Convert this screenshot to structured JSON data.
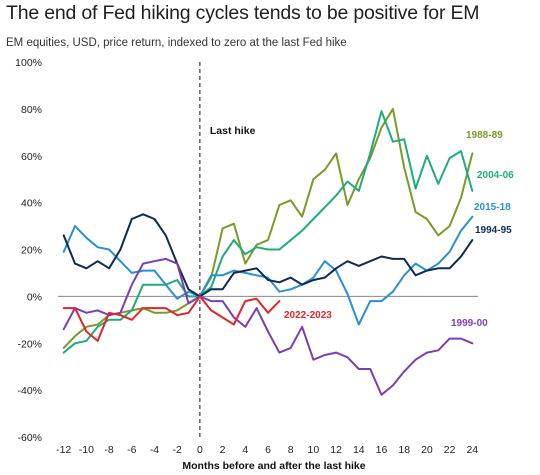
{
  "title": "The end of Fed hiking cycles tends to be positive for EM",
  "subtitle": "EM equities, USD, price return, indexed to zero at the last Fed hike",
  "chart_data": {
    "type": "line",
    "title": "The end of Fed hiking cycles tends to be positive for EM",
    "subtitle": "EM equities, USD, price return, indexed to zero at the last Fed hike",
    "xlabel": "Months before and after the last hike",
    "ylabel": "",
    "x": [
      -12,
      -11,
      -10,
      -9,
      -8,
      -7,
      -6,
      -5,
      -4,
      -3,
      -2,
      -1,
      0,
      1,
      2,
      3,
      4,
      5,
      6,
      7,
      8,
      9,
      10,
      11,
      12,
      13,
      14,
      15,
      16,
      17,
      18,
      19,
      20,
      21,
      22,
      23,
      24
    ],
    "xlim": [
      -12.5,
      24.5
    ],
    "ylim": [
      -60,
      100
    ],
    "xticks": [
      -12,
      -10,
      -8,
      -6,
      -4,
      -2,
      0,
      2,
      4,
      6,
      8,
      10,
      12,
      14,
      16,
      18,
      20,
      22,
      24
    ],
    "xtick_labels": [
      "-12",
      "-10",
      "-8",
      "-6",
      "-4",
      "-2",
      "0",
      "2",
      "4",
      "6",
      "8",
      "10",
      "12",
      "14",
      "16",
      "18",
      "20",
      "22",
      "24"
    ],
    "yticks": [
      -60,
      -40,
      -20,
      0,
      20,
      40,
      60,
      80,
      100
    ],
    "ytick_labels": [
      "-60%",
      "-40%",
      "-20%",
      "0%",
      "20%",
      "40%",
      "60%",
      "80%",
      "100%"
    ],
    "grid": false,
    "annotation": {
      "text": "Last hike",
      "x": 0
    },
    "series": [
      {
        "name": "1988-89",
        "color": "#7a9a2a",
        "values": [
          -22,
          -17,
          -13,
          -12,
          -8,
          -7,
          -6,
          -5,
          -7,
          -7,
          -6,
          -3,
          0,
          8,
          29,
          31,
          14,
          22,
          24,
          39,
          41,
          34,
          50,
          54,
          61,
          39,
          50,
          59,
          72,
          80,
          55,
          36,
          33,
          26,
          30,
          42,
          61
        ]
      },
      {
        "name": "2004-06",
        "color": "#1fab7c",
        "values": [
          -24,
          -20,
          -19,
          -13,
          -10,
          -10,
          -6,
          5,
          5,
          5,
          7,
          0,
          0,
          4,
          17,
          24,
          18,
          21,
          20,
          20,
          24,
          28,
          33,
          38,
          43,
          49,
          45,
          61,
          79,
          66,
          67,
          46,
          60,
          48,
          59,
          62,
          45
        ]
      },
      {
        "name": "2015-18",
        "color": "#2b8fd4",
        "values": [
          19,
          30,
          25,
          21,
          20,
          15,
          10,
          11,
          11,
          5,
          -1,
          2,
          0,
          9,
          9,
          11,
          10,
          9,
          8,
          2,
          3,
          5,
          8,
          15,
          11,
          1,
          -12,
          -2,
          -2,
          2,
          9,
          14,
          11,
          14,
          19,
          28,
          34
        ]
      },
      {
        "name": "1994-95",
        "color": "#0f2b55",
        "values": [
          26,
          14,
          12,
          15,
          12,
          20,
          33,
          35,
          33,
          26,
          14,
          3,
          0,
          3,
          3,
          10,
          11,
          12,
          7,
          6,
          8,
          5,
          7,
          8,
          12,
          15,
          13,
          15,
          17,
          16,
          16,
          9,
          11,
          12,
          12,
          17,
          24
        ]
      },
      {
        "name": "1999-00",
        "color": "#7a3fb2",
        "values": [
          -14,
          -5,
          -7,
          -6,
          -8,
          -7,
          5,
          14,
          15,
          16,
          14,
          -3,
          0,
          -2,
          -2,
          -9,
          -13,
          -5,
          -15,
          -24,
          -22,
          -13,
          -27,
          -25,
          -24,
          -26,
          -31,
          -31,
          -42,
          -38,
          -32,
          -27,
          -24,
          -23,
          -18,
          -18,
          -20
        ]
      },
      {
        "name": "2022-2023",
        "color": "#e0262a",
        "x": [
          -12,
          -11,
          -10,
          -9,
          -8,
          -7,
          -6,
          -5,
          -4,
          -3,
          -2,
          -1,
          0,
          1,
          2,
          3,
          4,
          5,
          6,
          7
        ],
        "values": [
          -5,
          -5,
          -15,
          -19,
          -7,
          -8,
          -10,
          -5,
          -5,
          -5,
          -8,
          -7,
          0,
          -6,
          -9,
          -12,
          -2,
          -1,
          -7,
          -2
        ]
      }
    ]
  }
}
